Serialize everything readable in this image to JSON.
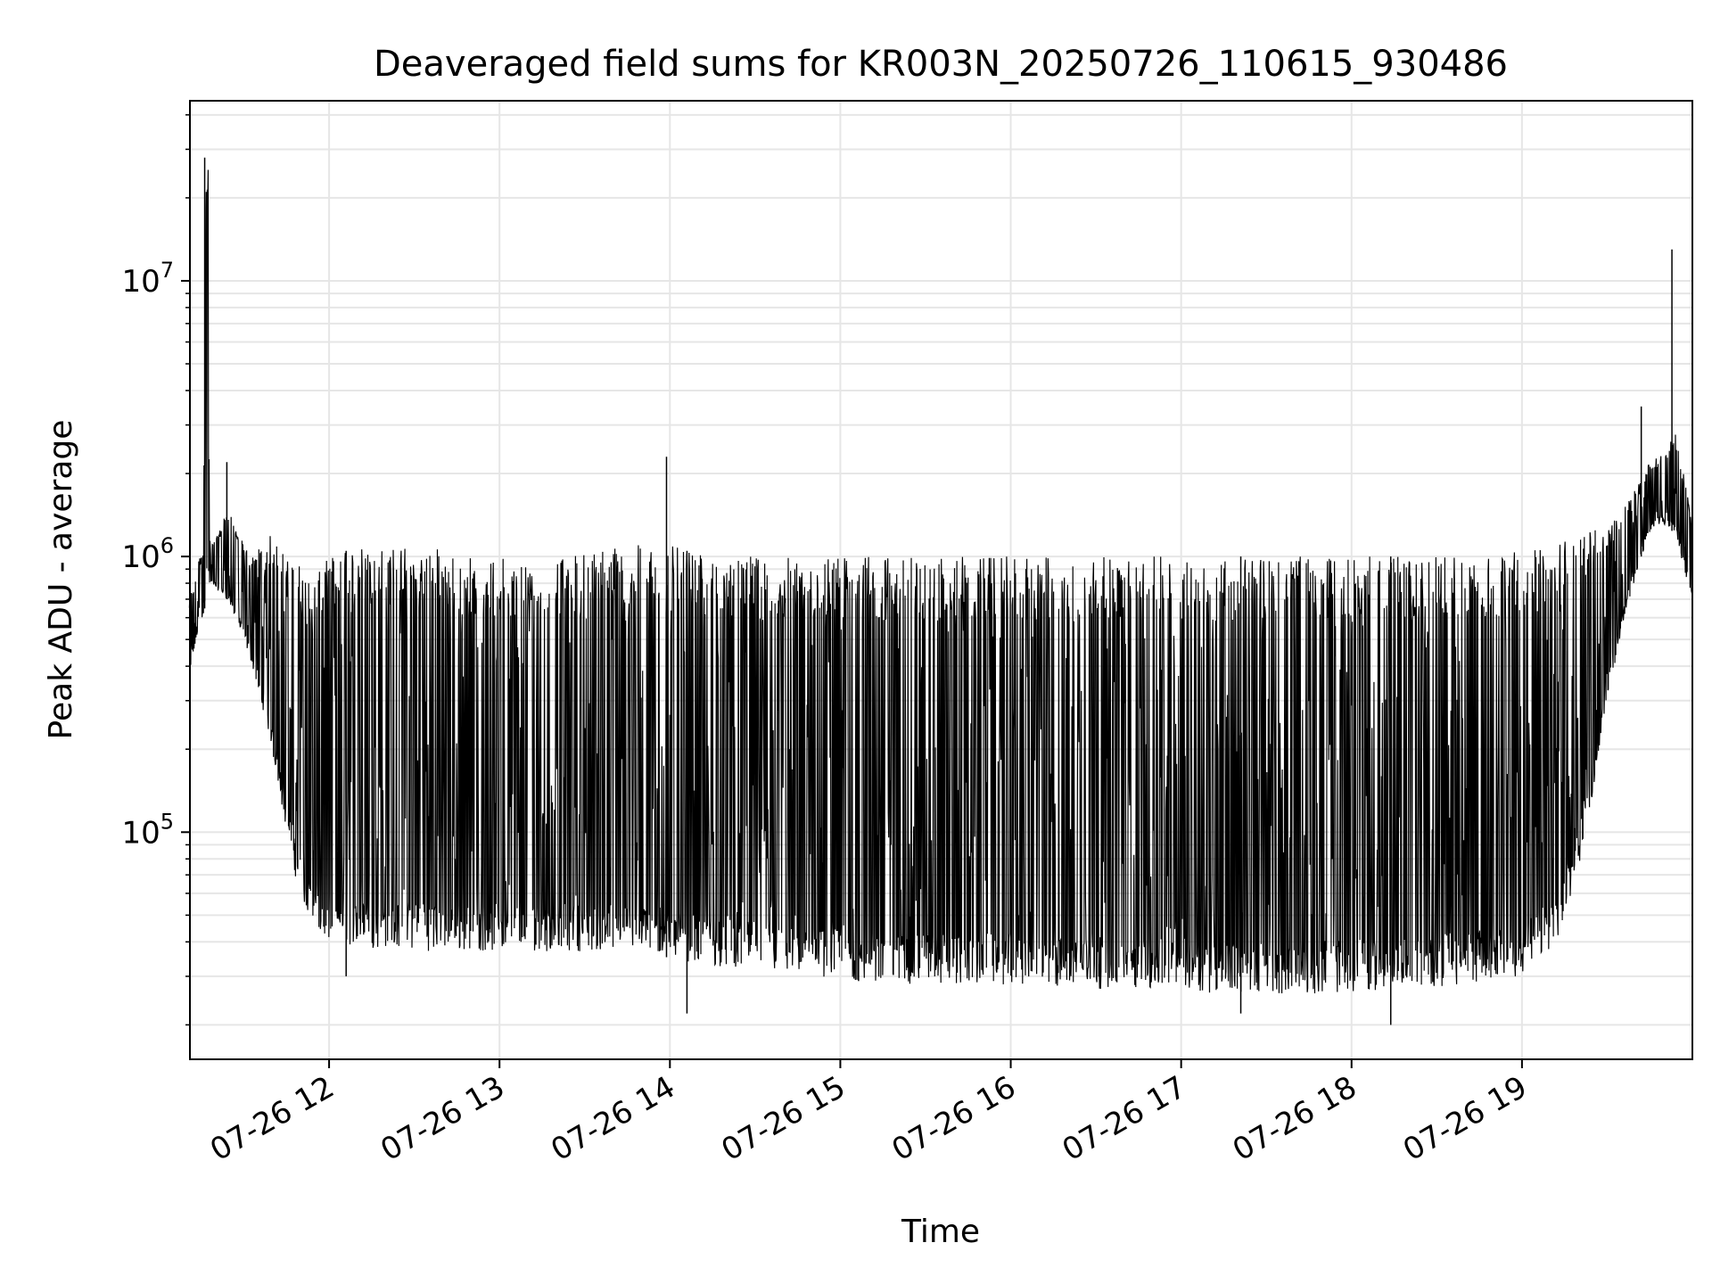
{
  "chart_data": {
    "type": "line",
    "title": "Deaveraged field sums for KR003N_20250726_110615_930486",
    "xlabel": "Time",
    "ylabel": "Peak ADU - average",
    "yscale": "log",
    "xlim": [
      "07-26 11:11",
      "07-26 20:00"
    ],
    "ylim": [
      15000,
      45000000
    ],
    "grid": true,
    "line_color": "#000000",
    "grid_color": "#e6e6e6",
    "x_ticks": [
      "07-26 12",
      "07-26 13",
      "07-26 14",
      "07-26 15",
      "07-26 16",
      "07-26 17",
      "07-26 18",
      "07-26 19"
    ],
    "x_tick_hours": [
      12,
      13,
      14,
      15,
      16,
      17,
      18,
      19
    ],
    "y_ticks": [
      {
        "value": 100000,
        "base": "10",
        "exp": "5"
      },
      {
        "value": 1000000,
        "base": "10",
        "exp": "6"
      },
      {
        "value": 10000000,
        "base": "10",
        "exp": "7"
      }
    ],
    "series": [
      {
        "x_hours": [
          11.18,
          11.22,
          11.26,
          11.28,
          11.29,
          11.3,
          11.31,
          11.35,
          11.4,
          11.45,
          11.5,
          11.55,
          11.6,
          11.65,
          11.7,
          11.75,
          11.8,
          11.85,
          11.9,
          11.95,
          12.0,
          12.2,
          12.4,
          12.6,
          12.8,
          13.0,
          13.2,
          13.4,
          13.6,
          13.8,
          14.0,
          14.2,
          14.4,
          14.6,
          14.8,
          15.0,
          15.2,
          15.4,
          15.6,
          15.8,
          16.0,
          16.2,
          16.4,
          16.6,
          16.8,
          17.0,
          17.2,
          17.4,
          17.6,
          17.8,
          18.0,
          18.2,
          18.4,
          18.6,
          18.8,
          19.0,
          19.2,
          19.3,
          19.4,
          19.5,
          19.6,
          19.7,
          19.75,
          19.8,
          19.85,
          19.9,
          19.95,
          20.0
        ],
        "envelope_low": [
          350000,
          500000,
          600000,
          700000,
          750000,
          750000,
          800000,
          750000,
          700000,
          600000,
          500000,
          400000,
          300000,
          220000,
          150000,
          100000,
          70000,
          55000,
          45000,
          42000,
          40000,
          38000,
          38000,
          37000,
          37000,
          37000,
          37000,
          37000,
          37000,
          37000,
          35000,
          33000,
          32000,
          31000,
          30000,
          29000,
          28000,
          28000,
          28000,
          28000,
          28000,
          27000,
          27000,
          27000,
          27000,
          27000,
          26000,
          26000,
          26000,
          26000,
          26000,
          27000,
          27000,
          28000,
          29000,
          30000,
          40000,
          60000,
          120000,
          300000,
          600000,
          1000000,
          1200000,
          1300000,
          1300000,
          1200000,
          900000,
          700000
        ],
        "envelope_high": [
          700000,
          900000,
          1100000,
          28000000,
          28000000,
          1200000,
          1100000,
          1200000,
          1500000,
          1300000,
          1100000,
          1000000,
          1100000,
          1200000,
          1100000,
          1000000,
          1000000,
          900000,
          800000,
          900000,
          1000000,
          1100000,
          1100000,
          1100000,
          1000000,
          1000000,
          1000000,
          1000000,
          1100000,
          1100000,
          1100000,
          1000000,
          1000000,
          1000000,
          1000000,
          1000000,
          1000000,
          1000000,
          1000000,
          1000000,
          1000000,
          1000000,
          1000000,
          1000000,
          1000000,
          1000000,
          1000000,
          1000000,
          1000000,
          1000000,
          1000000,
          1000000,
          1000000,
          1000000,
          1000000,
          1050000,
          1150000,
          1200000,
          1250000,
          1300000,
          1500000,
          1900000,
          2200000,
          2300000,
          2500000,
          2800000,
          2000000,
          1300000
        ],
        "spikes": [
          {
            "x_hour": 11.27,
            "value": 28000000
          },
          {
            "x_hour": 11.4,
            "value": 2200000
          },
          {
            "x_hour": 13.98,
            "value": 2300000
          },
          {
            "x_hour": 19.7,
            "value": 3500000
          },
          {
            "x_hour": 19.88,
            "value": 13000000
          },
          {
            "x_hour": 12.1,
            "value": 30000
          },
          {
            "x_hour": 14.1,
            "value": 22000
          },
          {
            "x_hour": 17.35,
            "value": 22000
          },
          {
            "x_hour": 18.23,
            "value": 20000
          }
        ]
      }
    ]
  }
}
